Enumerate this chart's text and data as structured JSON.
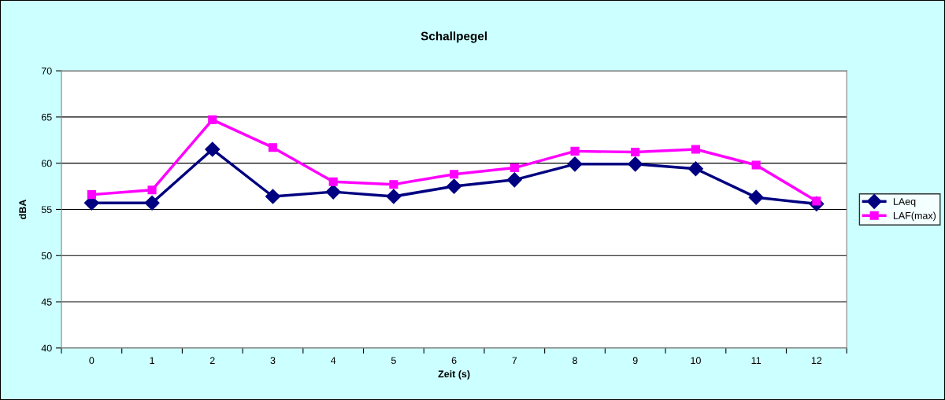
{
  "chart_data": {
    "type": "line",
    "title": "Schallpegel",
    "xlabel": "Zeit (s)",
    "ylabel": "dBA",
    "categories": [
      "0",
      "1",
      "2",
      "3",
      "4",
      "5",
      "6",
      "7",
      "8",
      "9",
      "10",
      "11",
      "12"
    ],
    "series": [
      {
        "name": "LAeq",
        "color": "#000080",
        "marker": "diamond",
        "values": [
          55.7,
          55.7,
          61.5,
          56.4,
          56.9,
          56.4,
          57.5,
          58.2,
          59.9,
          59.9,
          59.4,
          56.3,
          55.6
        ]
      },
      {
        "name": "LAF(max)",
        "color": "#ff00ff",
        "marker": "square",
        "values": [
          56.6,
          57.1,
          64.7,
          61.7,
          58.0,
          57.7,
          58.8,
          59.5,
          61.3,
          61.2,
          61.5,
          59.8,
          55.9
        ]
      }
    ],
    "ylim": [
      40,
      70
    ],
    "yticks": [
      40,
      45,
      50,
      55,
      60,
      65,
      70
    ],
    "grid": "y",
    "legend": "right",
    "line_style": "solid"
  }
}
